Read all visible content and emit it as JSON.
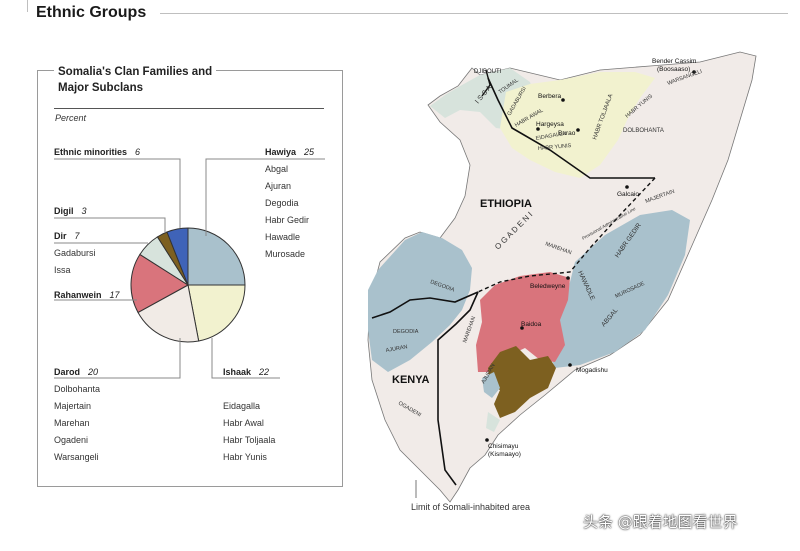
{
  "title": "Ethnic Groups",
  "chart": {
    "title_line1": "Somalia's Clan Families and",
    "title_line2": "Major Subclans",
    "unit": "Percent"
  },
  "chart_data": {
    "type": "pie",
    "title": "Somalia's Clan Families and Major Subclans",
    "unit": "Percent",
    "slices": [
      {
        "name": "Hawiya",
        "value": 25,
        "color": "#a9c1cc",
        "subclans": [
          "Abgal",
          "Ajuran",
          "Degodia",
          "Habr Gedir",
          "Hawadle",
          "Murosade"
        ]
      },
      {
        "name": "Ishaak",
        "value": 22,
        "color": "#f2f2cf",
        "subclans": [
          "Eidagalla",
          "Habr Awal",
          "Habr Toljaala",
          "Habr Yunis"
        ]
      },
      {
        "name": "Darod",
        "value": 20,
        "color": "#f1ebe6",
        "subclans": [
          "Dolbohanta",
          "Majertain",
          "Marehan",
          "Ogadeni",
          "Warsangeli"
        ]
      },
      {
        "name": "Rahanwein",
        "value": 17,
        "color": "#d9747c",
        "subclans": []
      },
      {
        "name": "Dir",
        "value": 7,
        "color": "#d7e3dc",
        "subclans": [
          "Gadabursi",
          "Issa"
        ]
      },
      {
        "name": "Digil",
        "value": 3,
        "color": "#7d6020",
        "subclans": []
      },
      {
        "name": "Ethnic minorities",
        "value": 6,
        "color": "#3f63b8",
        "subclans": []
      }
    ]
  },
  "legend": {
    "ethnic": {
      "name": "Ethnic minorities",
      "value": "6"
    },
    "hawiya": {
      "name": "Hawiya",
      "value": "25",
      "subs": [
        "Abgal",
        "Ajuran",
        "Degodia",
        "Habr Gedir",
        "Hawadle",
        "Murosade"
      ]
    },
    "digil": {
      "name": "Digil",
      "value": "3"
    },
    "dir": {
      "name": "Dir",
      "value": "7",
      "subs": [
        "Gadabursi",
        "Issa"
      ]
    },
    "rahanwein": {
      "name": "Rahanwein",
      "value": "17"
    },
    "darod": {
      "name": "Darod",
      "value": "20",
      "subs": [
        "Dolbohanta",
        "Majertain",
        "Marehan",
        "Ogadeni",
        "Warsangeli"
      ]
    },
    "ishaak": {
      "name": "Ishaak",
      "value": "22",
      "subs": [
        "Eidagalla",
        "Habr Awal",
        "Habr Toljaala",
        "Habr Yunis"
      ]
    }
  },
  "map": {
    "countries": {
      "ethiopia": "ETHIOPIA",
      "kenya": "KENYA",
      "djibouti": "DJIBOUTI"
    },
    "cities": {
      "bender": "Bender Cassim",
      "bender_alt": "(Boosaaso)",
      "berbera": "Berbera",
      "hargeysa": "Hargeysa",
      "burao": "Burao",
      "galcaio": "Galcaio",
      "beledweyne": "Beledweyne",
      "baidoa": "Baidoa",
      "mogadishu": "Mogadishu",
      "chisimayu": "Chisimayu",
      "chisimayu_alt": "(Kismaayo)"
    },
    "clans": {
      "issa": "I S S A",
      "gadabursi": "GADABURSI",
      "issa_tog": "TOUMAL",
      "habr_awal": "HABR AWAL",
      "eidagalla": "EIDAGALLA",
      "habr_yunis": "HABR YUNIS",
      "habr_toljaala": "HABR TOLJAALA",
      "habr_yunis2": "HABR YUNIS",
      "warsangeli": "WARSANGELI",
      "dolbohanta": "DOLBOHANTA",
      "majertain": "MAJERTAIN",
      "ogadeni": "O G A D E N I",
      "marehan": "MAREHAN",
      "habr_gedir": "HABR GEDIR",
      "hawadle": "HAWADLE",
      "murosade": "MUROSADE",
      "abgal": "ABGAL",
      "degodia": "DEGODIA",
      "degodia2": "DEGODIA",
      "ajuran": "AJURAN",
      "marehan2": "MAREHAN",
      "ajuran2": "AJURAN",
      "ogadeni2": "OGADENI",
      "admin_line": "Provisional Administrative Line"
    },
    "limit_label": "Limit of Somali-inhabited area"
  },
  "watermark": "头条 @跟着地图看世界"
}
